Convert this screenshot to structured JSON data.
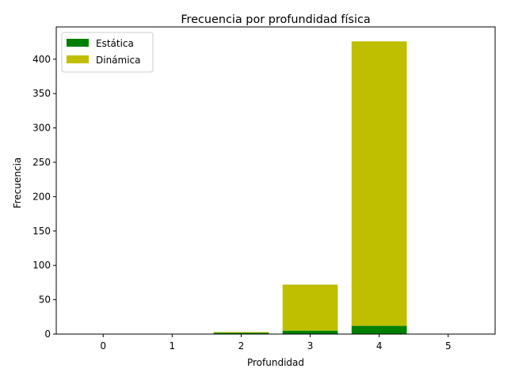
{
  "chart_data": {
    "type": "bar",
    "stacked": true,
    "title": "Frecuencia por profundidad física",
    "xlabel": "Profundidad",
    "ylabel": "Frecuencia",
    "categories": [
      "0",
      "1",
      "2",
      "3",
      "4",
      "5"
    ],
    "x": [
      0,
      1,
      2,
      3,
      4,
      5
    ],
    "xlim": [
      -0.68,
      5.68
    ],
    "ylim": [
      0,
      447
    ],
    "yticks": [
      0,
      50,
      100,
      150,
      200,
      250,
      300,
      350,
      400
    ],
    "grid": false,
    "legend_position": "upper-left",
    "series": [
      {
        "name": "Estática",
        "color": "#008000",
        "values": [
          0,
          0,
          2,
          5,
          12,
          0
        ]
      },
      {
        "name": "Dinámica",
        "color": "#bfbf00",
        "values": [
          0,
          0,
          1,
          67,
          414,
          0
        ]
      }
    ]
  }
}
